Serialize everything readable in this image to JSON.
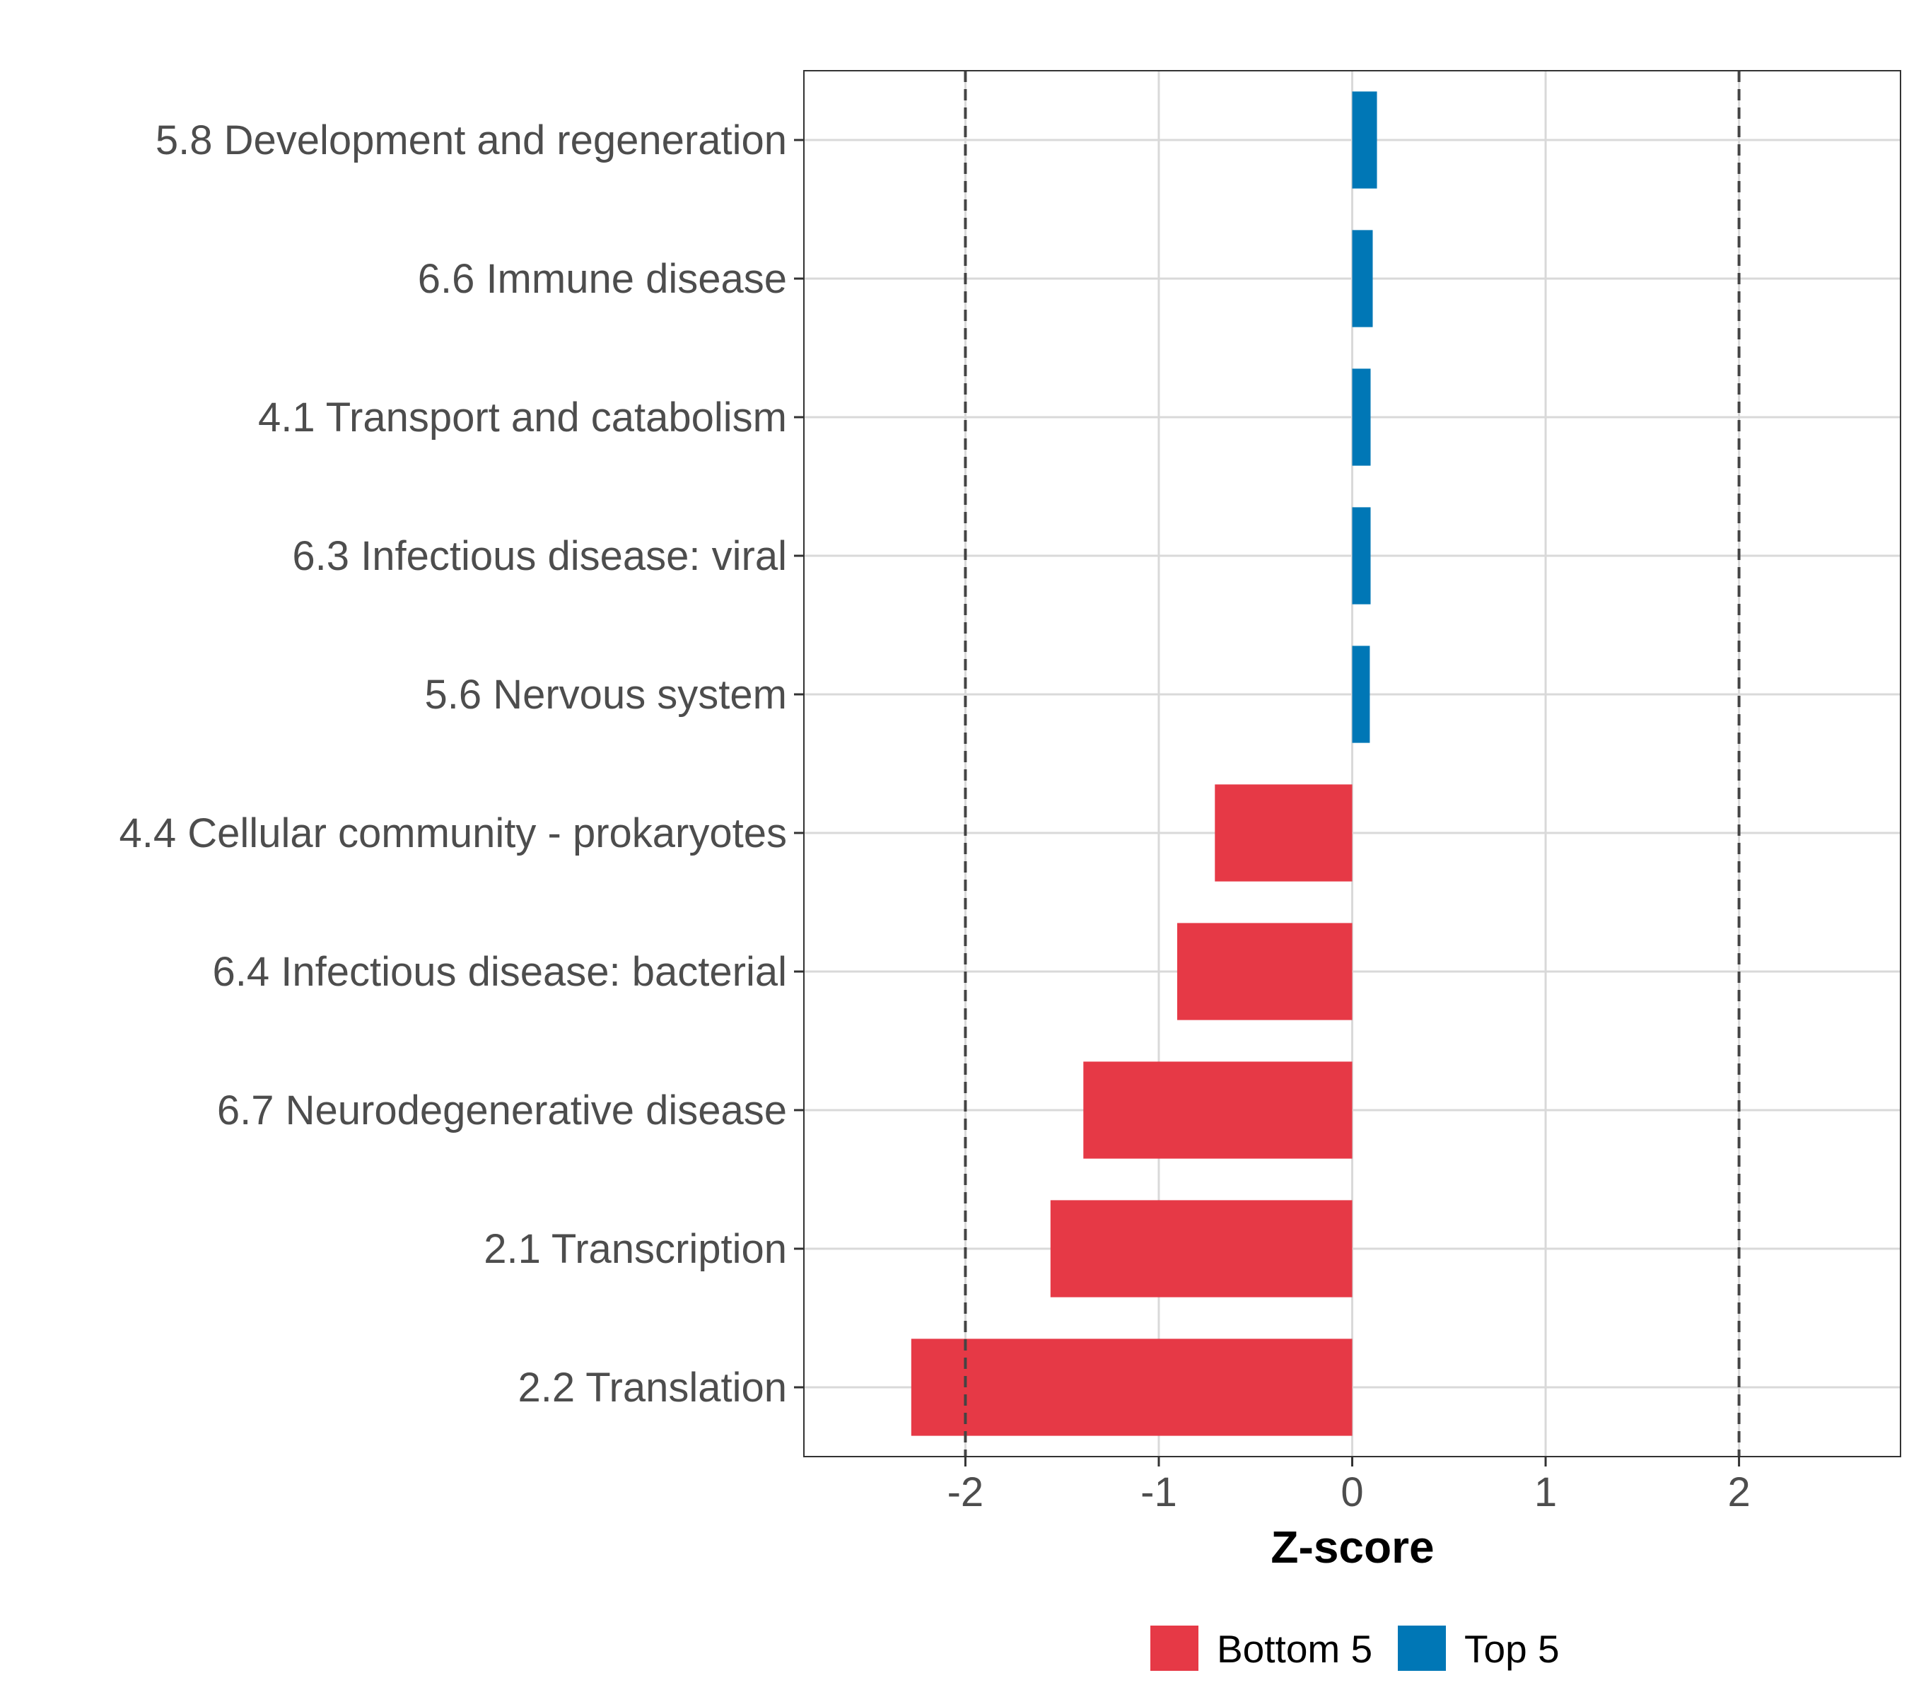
{
  "chart_data": {
    "type": "bar",
    "orientation": "horizontal",
    "title": "",
    "xlabel": "Z-score",
    "ylabel": "",
    "xlim": [
      -2.835,
      2.835
    ],
    "xticks": [
      -2,
      -1,
      0,
      1,
      2
    ],
    "xtick_labels": [
      "-2",
      "-1",
      "0",
      "1",
      "2"
    ],
    "reference_lines": [
      -2,
      2
    ],
    "grid": true,
    "categories": [
      "5.8 Development and regeneration",
      "6.6 Immune disease",
      "4.1 Transport and catabolism",
      "6.3 Infectious disease: viral",
      "5.6 Nervous system",
      "4.4 Cellular community - prokaryotes",
      "6.4 Infectious disease: bacterial",
      "6.7 Neurodegenerative disease",
      "2.1 Transcription",
      "2.2 Translation"
    ],
    "values": [
      0.128,
      0.106,
      0.095,
      0.095,
      0.091,
      -0.71,
      -0.905,
      -1.39,
      -1.56,
      -2.28
    ],
    "groups": [
      "Top 5",
      "Top 5",
      "Top 5",
      "Top 5",
      "Top 5",
      "Bottom 5",
      "Bottom 5",
      "Bottom 5",
      "Bottom 5",
      "Bottom 5"
    ],
    "legend": {
      "position": "bottom",
      "entries": [
        {
          "label": "Bottom 5",
          "color": "#E63946"
        },
        {
          "label": "Top 5",
          "color": "#0077B6"
        }
      ]
    }
  }
}
